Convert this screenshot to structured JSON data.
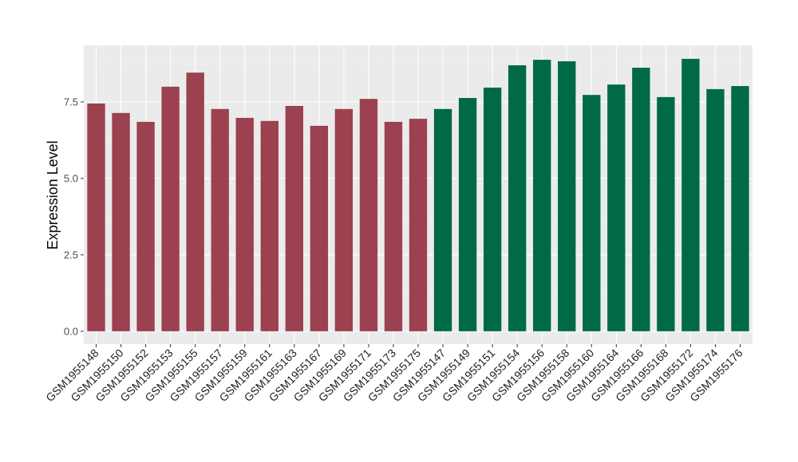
{
  "chart_data": {
    "type": "bar",
    "y_label": "Expression Level",
    "categories": [
      "GSM1955148",
      "GSM1955150",
      "GSM1955152",
      "GSM1955153",
      "GSM1955155",
      "GSM1955157",
      "GSM1955159",
      "GSM1955161",
      "GSM1955163",
      "GSM1955167",
      "GSM1955169",
      "GSM1955171",
      "GSM1955173",
      "GSM1955175",
      "GSM1955147",
      "GSM1955149",
      "GSM1955151",
      "GSM1955154",
      "GSM1955156",
      "GSM1955158",
      "GSM1955160",
      "GSM1955164",
      "GSM1955166",
      "GSM1955168",
      "GSM1955172",
      "GSM1955174",
      "GSM1955176"
    ],
    "values": [
      7.45,
      7.14,
      6.85,
      8.0,
      8.46,
      7.27,
      6.98,
      6.88,
      7.37,
      6.72,
      7.27,
      7.6,
      6.85,
      6.95,
      7.27,
      7.63,
      7.97,
      8.7,
      8.88,
      8.83,
      7.73,
      8.07,
      8.62,
      7.66,
      8.91,
      7.92,
      8.02
    ],
    "colors": [
      "#9b4150",
      "#9b4150",
      "#9b4150",
      "#9b4150",
      "#9b4150",
      "#9b4150",
      "#9b4150",
      "#9b4150",
      "#9b4150",
      "#9b4150",
      "#9b4150",
      "#9b4150",
      "#9b4150",
      "#9b4150",
      "#006a46",
      "#006a46",
      "#006a46",
      "#006a46",
      "#006a46",
      "#006a46",
      "#006a46",
      "#006a46",
      "#006a46",
      "#006a46",
      "#006a46",
      "#006a46",
      "#006a46"
    ],
    "ylim": [
      -0.42,
      9.35
    ],
    "yticks": [
      {
        "value": 0,
        "label": "0.0"
      },
      2.5,
      {
        "value": 5,
        "label": "5.0"
      },
      7.5
    ],
    "grid": true
  }
}
